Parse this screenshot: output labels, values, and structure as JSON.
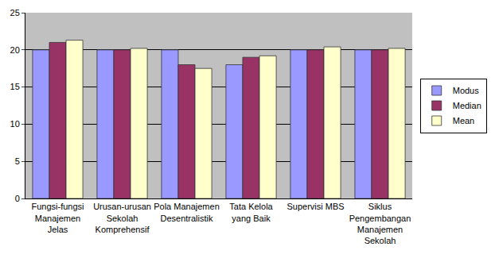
{
  "chart_data": {
    "type": "bar",
    "categories": [
      "Fungsi-fungsi Manajemen Jelas",
      "Urusan-urusan Sekolah Komprehensif",
      "Pola Manajemen Desentralistik",
      "Tata Kelola yang Baik",
      "Supervisi MBS",
      "Siklus Pengembangan Manajemen Sekolah"
    ],
    "series": [
      {
        "name": "Modus",
        "color": "#9999FF",
        "values": [
          20,
          20,
          20,
          18,
          20,
          20
        ]
      },
      {
        "name": "Median",
        "color": "#993366",
        "values": [
          21,
          20,
          18,
          19,
          20,
          20
        ]
      },
      {
        "name": "Mean",
        "color": "#FFFFCC",
        "values": [
          21.3,
          20.2,
          17.5,
          19.2,
          20.4,
          20.2
        ]
      }
    ],
    "ylim": [
      0,
      25
    ],
    "yticks": [
      0,
      5,
      10,
      15,
      20,
      25
    ],
    "grid": true,
    "legend": "right"
  }
}
